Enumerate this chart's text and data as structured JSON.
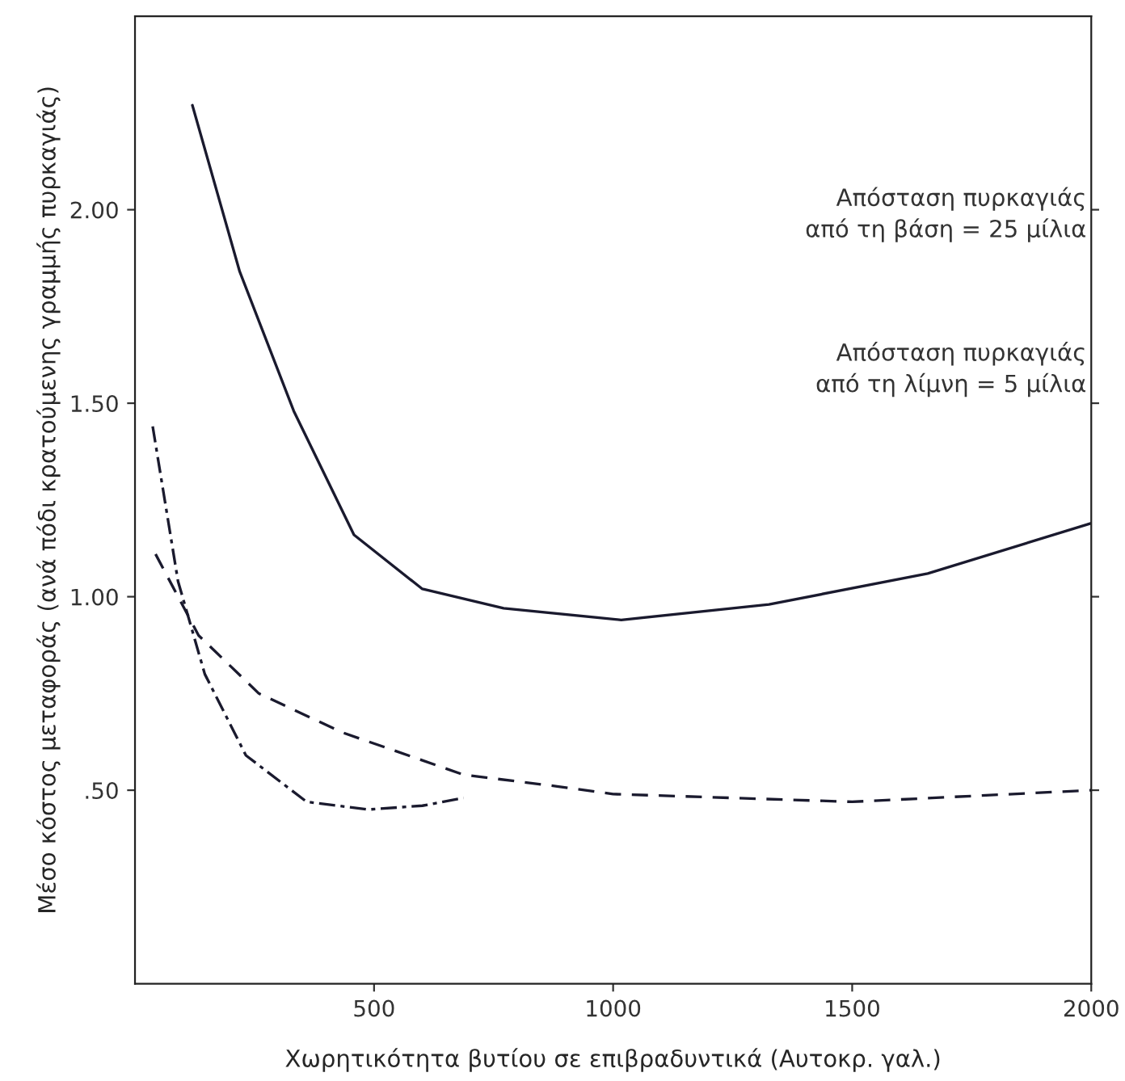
{
  "chart_data": {
    "type": "line",
    "xlabel": "Χωρητικότητα βυτίου σε επιβραδυντικά (Αυτοκρ. γαλ.)",
    "ylabel": "Μέσο κόστος μεταφοράς (ανά πόδι κρατούμενης γραμμής πυρκαγιάς)",
    "xlim": [
      0,
      2000
    ],
    "xticks": [
      500,
      1000,
      1500,
      2000
    ],
    "ylim": [
      0,
      2.5
    ],
    "yticks": [
      {
        "value": 0.5,
        "label": ".50"
      },
      {
        "value": 1.0,
        "label": "1.00"
      },
      {
        "value": 1.5,
        "label": "1.50"
      },
      {
        "value": 2.0,
        "label": "2.00"
      }
    ],
    "grid": false,
    "legend": false,
    "annotations": [
      "Απόσταση πυρκαγιάς\nαπό τη βάση = 25 μίλια",
      "Απόσταση πυρκαγιάς\nαπό τη λίμνη = 5 μίλια"
    ],
    "series": [
      {
        "color": "#1a1a2e",
        "line_style": "solid",
        "x": [
          120,
          219,
          332,
          458,
          601,
          771,
          1017,
          1326,
          1658,
          2000
        ],
        "values": [
          2.27,
          1.84,
          1.48,
          1.16,
          1.02,
          0.97,
          0.94,
          0.98,
          1.06,
          1.19
        ]
      },
      {
        "color": "#1a1a2e",
        "line_style": "dashed",
        "x": [
          43,
          133,
          259,
          432,
          687,
          883,
          1000,
          1500,
          2000
        ],
        "values": [
          1.11,
          0.9,
          0.75,
          0.65,
          0.54,
          0.51,
          0.49,
          0.47,
          0.5
        ]
      },
      {
        "color": "#1a1a2e",
        "line_style": "dashdot",
        "x": [
          37,
          90,
          146,
          232,
          359,
          488,
          601,
          687
        ],
        "values": [
          1.44,
          1.04,
          0.8,
          0.59,
          0.47,
          0.45,
          0.46,
          0.48
        ]
      }
    ]
  }
}
